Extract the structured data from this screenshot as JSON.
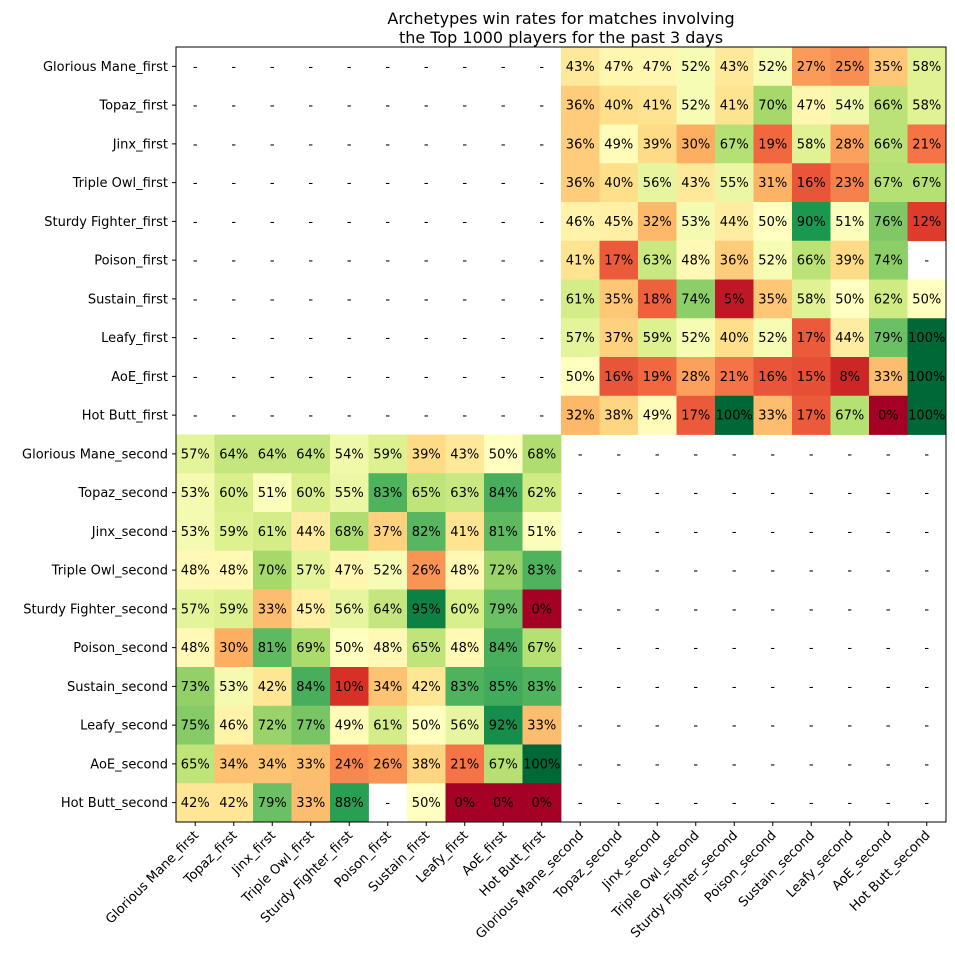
{
  "chart_data": {
    "type": "heatmap",
    "title": [
      "Archetypes win rates for matches involving",
      "the Top 1000 players for the past 3 days"
    ],
    "xlabel": "",
    "ylabel": "",
    "colormap": "RdYlGn",
    "vmin": 0,
    "vmax": 100,
    "empty_label": "-",
    "value_suffix": "%",
    "rows": [
      "Glorious Mane_first",
      "Topaz_first",
      "Jinx_first",
      "Triple Owl_first",
      "Sturdy Fighter_first",
      "Poison_first",
      "Sustain_first",
      "Leafy_first",
      "AoE_first",
      "Hot Butt_first",
      "Glorious Mane_second",
      "Topaz_second",
      "Jinx_second",
      "Triple Owl_second",
      "Sturdy Fighter_second",
      "Poison_second",
      "Sustain_second",
      "Leafy_second",
      "AoE_second",
      "Hot Butt_second"
    ],
    "columns": [
      "Glorious Mane_first",
      "Topaz_first",
      "Jinx_first",
      "Triple Owl_first",
      "Sturdy Fighter_first",
      "Poison_first",
      "Sustain_first",
      "Leafy_first",
      "AoE_first",
      "Hot Butt_first",
      "Glorious Mane_second",
      "Topaz_second",
      "Jinx_second",
      "Triple Owl_second",
      "Sturdy Fighter_second",
      "Poison_second",
      "Sustain_second",
      "Leafy_second",
      "AoE_second",
      "Hot Butt_second"
    ],
    "values": [
      [
        null,
        null,
        null,
        null,
        null,
        null,
        null,
        null,
        null,
        null,
        43,
        47,
        47,
        52,
        43,
        52,
        27,
        25,
        35,
        58
      ],
      [
        null,
        null,
        null,
        null,
        null,
        null,
        null,
        null,
        null,
        null,
        36,
        40,
        41,
        52,
        41,
        70,
        47,
        54,
        66,
        58
      ],
      [
        null,
        null,
        null,
        null,
        null,
        null,
        null,
        null,
        null,
        null,
        36,
        49,
        39,
        30,
        67,
        19,
        58,
        28,
        66,
        21
      ],
      [
        null,
        null,
        null,
        null,
        null,
        null,
        null,
        null,
        null,
        null,
        36,
        40,
        56,
        43,
        55,
        31,
        16,
        23,
        67,
        67
      ],
      [
        null,
        null,
        null,
        null,
        null,
        null,
        null,
        null,
        null,
        null,
        46,
        45,
        32,
        53,
        44,
        50,
        90,
        51,
        76,
        12
      ],
      [
        null,
        null,
        null,
        null,
        null,
        null,
        null,
        null,
        null,
        null,
        41,
        17,
        63,
        48,
        36,
        52,
        66,
        39,
        74,
        null
      ],
      [
        null,
        null,
        null,
        null,
        null,
        null,
        null,
        null,
        null,
        null,
        61,
        35,
        18,
        74,
        5,
        35,
        58,
        50,
        62,
        50
      ],
      [
        null,
        null,
        null,
        null,
        null,
        null,
        null,
        null,
        null,
        null,
        57,
        37,
        59,
        52,
        40,
        52,
        17,
        44,
        79,
        100
      ],
      [
        null,
        null,
        null,
        null,
        null,
        null,
        null,
        null,
        null,
        null,
        50,
        16,
        19,
        28,
        21,
        16,
        15,
        8,
        33,
        100
      ],
      [
        null,
        null,
        null,
        null,
        null,
        null,
        null,
        null,
        null,
        null,
        32,
        38,
        49,
        17,
        100,
        33,
        17,
        67,
        0,
        100
      ],
      [
        57,
        64,
        64,
        64,
        54,
        59,
        39,
        43,
        50,
        68,
        null,
        null,
        null,
        null,
        null,
        null,
        null,
        null,
        null,
        null
      ],
      [
        53,
        60,
        51,
        60,
        55,
        83,
        65,
        63,
        84,
        62,
        null,
        null,
        null,
        null,
        null,
        null,
        null,
        null,
        null,
        null
      ],
      [
        53,
        59,
        61,
        44,
        68,
        37,
        82,
        41,
        81,
        51,
        null,
        null,
        null,
        null,
        null,
        null,
        null,
        null,
        null,
        null
      ],
      [
        48,
        48,
        70,
        57,
        47,
        52,
        26,
        48,
        72,
        83,
        null,
        null,
        null,
        null,
        null,
        null,
        null,
        null,
        null,
        null
      ],
      [
        57,
        59,
        33,
        45,
        56,
        64,
        95,
        60,
        79,
        0,
        null,
        null,
        null,
        null,
        null,
        null,
        null,
        null,
        null,
        null
      ],
      [
        48,
        30,
        81,
        69,
        50,
        48,
        65,
        48,
        84,
        67,
        null,
        null,
        null,
        null,
        null,
        null,
        null,
        null,
        null,
        null
      ],
      [
        73,
        53,
        42,
        84,
        10,
        34,
        42,
        83,
        85,
        83,
        null,
        null,
        null,
        null,
        null,
        null,
        null,
        null,
        null,
        null
      ],
      [
        75,
        46,
        72,
        77,
        49,
        61,
        50,
        56,
        92,
        33,
        null,
        null,
        null,
        null,
        null,
        null,
        null,
        null,
        null,
        null
      ],
      [
        65,
        34,
        34,
        33,
        24,
        26,
        38,
        21,
        67,
        100,
        null,
        null,
        null,
        null,
        null,
        null,
        null,
        null,
        null,
        null
      ],
      [
        42,
        42,
        79,
        33,
        88,
        null,
        50,
        0,
        0,
        0,
        null,
        null,
        null,
        null,
        null,
        null,
        null,
        null,
        null,
        null
      ]
    ],
    "cell_labels": [
      [
        "-",
        "-",
        "-",
        "-",
        "-",
        "-",
        "-",
        "-",
        "-",
        "-",
        "43%",
        "47%",
        "47%",
        "52%",
        "43%",
        "52%",
        "27%",
        "25%",
        "35%",
        "58%"
      ],
      [
        "-",
        "-",
        "-",
        "-",
        "-",
        "-",
        "-",
        "-",
        "-",
        "-",
        "36%",
        "40%",
        "41%",
        "52%",
        "41%",
        "70%",
        "47%",
        "54%",
        "66%",
        "58%"
      ],
      [
        "-",
        "-",
        "-",
        "-",
        "-",
        "-",
        "-",
        "-",
        "-",
        "-",
        "36%",
        "49%",
        "39%",
        "30%",
        "67%",
        "19%",
        "58%",
        "28%",
        "66%",
        "21%"
      ],
      [
        "-",
        "-",
        "-",
        "-",
        "-",
        "-",
        "-",
        "-",
        "-",
        "-",
        "36%",
        "40%",
        "56%",
        "43%",
        "55%",
        "31%",
        "16%",
        "23%",
        "67%",
        "67%"
      ],
      [
        "-",
        "-",
        "-",
        "-",
        "-",
        "-",
        "-",
        "-",
        "-",
        "-",
        "46%",
        "45%",
        "32%",
        "53%",
        "44%",
        "50%",
        "90%",
        "51%",
        "76%",
        "12%"
      ],
      [
        "-",
        "-",
        "-",
        "-",
        "-",
        "-",
        "-",
        "-",
        "-",
        "-",
        "41%",
        "17%",
        "63%",
        "48%",
        "36%",
        "52%",
        "66%",
        "39%",
        "74%",
        "-"
      ],
      [
        "-",
        "-",
        "-",
        "-",
        "-",
        "-",
        "-",
        "-",
        "-",
        "-",
        "61%",
        "35%",
        "18%",
        "74%",
        "5%",
        "35%",
        "58%",
        "50%",
        "62%",
        "50%"
      ],
      [
        "-",
        "-",
        "-",
        "-",
        "-",
        "-",
        "-",
        "-",
        "-",
        "-",
        "57%",
        "37%",
        "59%",
        "52%",
        "40%",
        "52%",
        "17%",
        "44%",
        "79%",
        "100%"
      ],
      [
        "-",
        "-",
        "-",
        "-",
        "-",
        "-",
        "-",
        "-",
        "-",
        "-",
        "50%",
        "16%",
        "19%",
        "28%",
        "21%",
        "16%",
        "15%",
        "8%",
        "33%",
        "100%"
      ],
      [
        "-",
        "-",
        "-",
        "-",
        "-",
        "-",
        "-",
        "-",
        "-",
        "-",
        "32%",
        "38%",
        "49%",
        "17%",
        "100%",
        "33%",
        "17%",
        "67%",
        "0%",
        "100%"
      ],
      [
        "57%",
        "64%",
        "64%",
        "64%",
        "54%",
        "59%",
        "39%",
        "43%",
        "50%",
        "68%",
        "-",
        "-",
        "-",
        "-",
        "-",
        "-",
        "-",
        "-",
        "-",
        "-"
      ],
      [
        "53%",
        "60%",
        "51%",
        "60%",
        "55%",
        "83%",
        "65%",
        "63%",
        "84%",
        "62%",
        "-",
        "-",
        "-",
        "-",
        "-",
        "-",
        "-",
        "-",
        "-",
        "-"
      ],
      [
        "53%",
        "59%",
        "61%",
        "44%",
        "68%",
        "37%",
        "82%",
        "41%",
        "81%",
        "51%",
        "-",
        "-",
        "-",
        "-",
        "-",
        "-",
        "-",
        "-",
        "-",
        "-"
      ],
      [
        "48%",
        "48%",
        "70%",
        "57%",
        "47%",
        "52%",
        "26%",
        "48%",
        "72%",
        "83%",
        "-",
        "-",
        "-",
        "-",
        "-",
        "-",
        "-",
        "-",
        "-",
        "-"
      ],
      [
        "57%",
        "59%",
        "33%",
        "45%",
        "56%",
        "64%",
        "95%",
        "60%",
        "79%",
        "0%",
        "-",
        "-",
        "-",
        "-",
        "-",
        "-",
        "-",
        "-",
        "-",
        "-"
      ],
      [
        "48%",
        "30%",
        "81%",
        "69%",
        "50%",
        "48%",
        "65%",
        "48%",
        "84%",
        "67%",
        "-",
        "-",
        "-",
        "-",
        "-",
        "-",
        "-",
        "-",
        "-",
        "-"
      ],
      [
        "73%",
        "53%",
        "42%",
        "84%",
        "10%",
        "34%",
        "42%",
        "83%",
        "85%",
        "83%",
        "-",
        "-",
        "-",
        "-",
        "-",
        "-",
        "-",
        "-",
        "-",
        "-"
      ],
      [
        "75%",
        "46%",
        "72%",
        "77%",
        "49%",
        "61%",
        "50%",
        "56%",
        "92%",
        "33%",
        "-",
        "-",
        "-",
        "-",
        "-",
        "-",
        "-",
        "-",
        "-",
        "-"
      ],
      [
        "65%",
        "34%",
        "34%",
        "33%",
        "24%",
        "26%",
        "38%",
        "21%",
        "67%",
        "100%",
        "-",
        "-",
        "-",
        "-",
        "-",
        "-",
        "-",
        "-",
        "-",
        "-"
      ],
      [
        "42%",
        "42%",
        "79%",
        "33%",
        "88%",
        "-",
        "50%",
        "0%",
        "0%",
        "0%",
        "-",
        "-",
        "-",
        "-",
        "-",
        "-",
        "-",
        "-",
        "-",
        "-"
      ]
    ],
    "grid": false,
    "legend": "none"
  }
}
